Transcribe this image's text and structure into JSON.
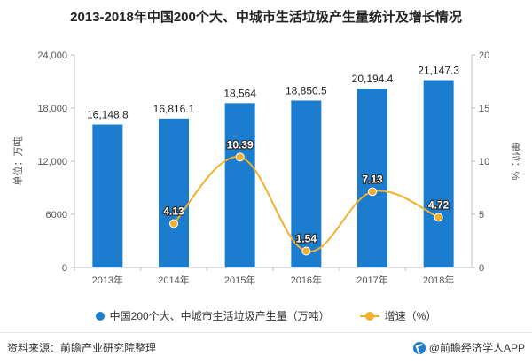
{
  "title": "2013-2018年中国200个大、中城市生活垃圾产生量统计及增长情况",
  "footer": {
    "source": "资料来源：前瞻产业研究院整理",
    "brand": "@前瞻经济学人APP"
  },
  "chart_data": {
    "type": "bar",
    "categories": [
      "2013年",
      "2014年",
      "2015年",
      "2016年",
      "2017年",
      "2018年"
    ],
    "series": [
      {
        "name": "中国200个大、中城市生活垃圾产生量（万吨）",
        "type": "bar",
        "axis": "left",
        "values": [
          16148.8,
          16816.1,
          18564,
          18850.5,
          20194.4,
          21147.3
        ],
        "labels": [
          "16,148.8",
          "16,816.1",
          "18,564",
          "18,850.5",
          "20,194.4",
          "21,147.3"
        ]
      },
      {
        "name": "增速（%）",
        "type": "line",
        "axis": "right",
        "values": [
          null,
          4.13,
          10.39,
          1.54,
          7.13,
          4.72
        ],
        "labels": [
          "",
          "4.13",
          "10.39",
          "1.54",
          "7.13",
          "4.72"
        ]
      }
    ],
    "ylabel": "单位：万吨",
    "y2label": "单位：%",
    "ylim": [
      0,
      24000
    ],
    "y2lim": [
      0,
      20
    ],
    "yticks": [
      "0",
      "6000",
      "12,000",
      "18,000",
      "24,000"
    ],
    "y2ticks": [
      "0",
      "5",
      "10",
      "15",
      "20"
    ],
    "legend_position": "bottom",
    "colors": {
      "bar": "#1c7cce",
      "line": "#f2b02d"
    }
  }
}
